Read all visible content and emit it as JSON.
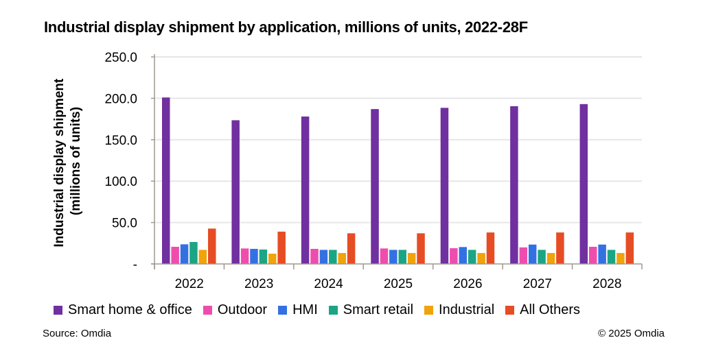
{
  "chart_data": {
    "type": "bar",
    "title": "Industrial display shipment by application, millions of units, 2022-28F",
    "xlabel": "",
    "ylabel": "Industrial display shipment\n(millions of units)",
    "ylabel_lines": [
      "Industrial display shipment",
      "(millions of units)"
    ],
    "ylim": [
      0,
      250
    ],
    "yticks": [
      0,
      50,
      100,
      150,
      200,
      250
    ],
    "ytick_labels": [
      "-",
      "50.0",
      "100.0",
      "150.0",
      "200.0",
      "250.0"
    ],
    "grid": true,
    "legend_position": "bottom",
    "categories": [
      "2022",
      "2023",
      "2024",
      "2025",
      "2026",
      "2027",
      "2028"
    ],
    "series": [
      {
        "name": "Smart home & office",
        "color": "#7030A0",
        "values": [
          201,
          173.5,
          178,
          187,
          188.5,
          190.5,
          193
        ]
      },
      {
        "name": "Outdoor",
        "color": "#EE4DAE",
        "values": [
          20.7,
          18.7,
          18.2,
          18.7,
          19,
          20,
          20.7
        ]
      },
      {
        "name": "HMI",
        "color": "#3371E3",
        "values": [
          23.7,
          18.2,
          17,
          17,
          20.4,
          23.4,
          23.4
        ]
      },
      {
        "name": "Smart retail",
        "color": "#1BA585",
        "values": [
          26.5,
          17.4,
          17,
          17,
          17,
          17,
          17
        ]
      },
      {
        "name": "Industrial",
        "color": "#F0A30A",
        "values": [
          17,
          12.4,
          13.2,
          13.2,
          13.2,
          13.2,
          13.2
        ]
      },
      {
        "name": "All Others",
        "color": "#E64D24",
        "values": [
          42.7,
          39,
          37,
          37,
          38,
          38,
          38
        ]
      }
    ]
  },
  "footer": {
    "source": "Source: Omdia",
    "copyright": "© 2025 Omdia"
  }
}
